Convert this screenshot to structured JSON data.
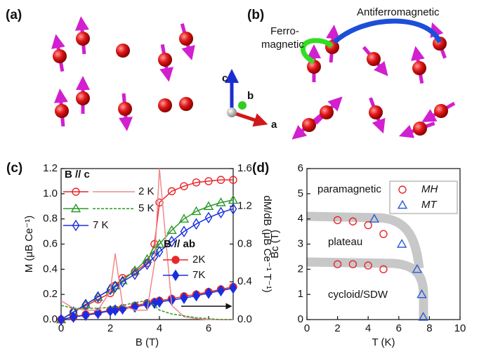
{
  "panel_a": {
    "label": "(a)"
  },
  "panel_b": {
    "label": "(b)",
    "texts": [
      "Ferro-",
      "magnetic",
      "Antiferromagnetic"
    ],
    "axes": [
      "c",
      "b",
      "a"
    ]
  },
  "chart_data": [
    {
      "type": "line",
      "label": "(c)",
      "xlabel": "B (T)",
      "ylabel": "M (μB Ce⁻¹)",
      "y2label": "dM/dB (μB Ce⁻¹ T⁻¹)",
      "legend_titles": [
        "B // c",
        "B // ab"
      ],
      "xlim": [
        0,
        7
      ],
      "xticks": [
        0,
        2,
        4,
        6
      ],
      "ylim": [
        0,
        1.2
      ],
      "yticks": [
        {
          "value": 0,
          "label": "0.0"
        },
        0.2,
        0.4,
        0.6,
        0.8,
        {
          "value": 1,
          "label": "1.0"
        },
        1.2
      ],
      "y2lim": [
        0,
        1.6
      ],
      "y2ticks": [
        {
          "value": 0,
          "label": "0.0"
        },
        0.4,
        0.8,
        1.2,
        1.6
      ],
      "x": [
        0,
        0.5,
        1,
        1.5,
        2,
        2.2,
        2.5,
        3,
        3.5,
        3.8,
        4,
        4.5,
        5,
        5.5,
        6,
        6.5,
        7
      ],
      "series": [
        {
          "name": "2 K",
          "color": "#e8262b",
          "marker": "circle-open",
          "values": [
            0,
            0.06,
            0.11,
            0.16,
            0.21,
            0.27,
            0.33,
            0.38,
            0.45,
            0.6,
            0.93,
            1.02,
            1.06,
            1.09,
            1.1,
            1.11,
            1.11
          ]
        },
        {
          "name": "5 K",
          "color": "#2a9a2a",
          "marker": "triangle-open",
          "values": [
            0,
            0.06,
            0.12,
            0.18,
            0.24,
            0.27,
            0.31,
            0.39,
            0.48,
            0.55,
            0.6,
            0.71,
            0.8,
            0.86,
            0.9,
            0.93,
            0.95
          ]
        },
        {
          "name": "7 K",
          "color": "#1a2ee0",
          "marker": "diamond-open",
          "values": [
            0,
            0.06,
            0.12,
            0.18,
            0.24,
            0.26,
            0.3,
            0.36,
            0.44,
            0.5,
            0.54,
            0.62,
            0.7,
            0.76,
            0.81,
            0.85,
            0.88
          ]
        },
        {
          "name": "2K",
          "color": "#e8262b",
          "marker": "circle-filled",
          "values": [
            0,
            0.02,
            0.04,
            0.055,
            0.075,
            0.08,
            0.09,
            0.11,
            0.13,
            0.14,
            0.15,
            0.165,
            0.185,
            0.2,
            0.22,
            0.24,
            0.26
          ]
        },
        {
          "name": "7K",
          "color": "#1a2ee0",
          "marker": "diamond-filled",
          "values": [
            0,
            0.02,
            0.035,
            0.05,
            0.07,
            0.075,
            0.085,
            0.1,
            0.12,
            0.13,
            0.14,
            0.155,
            0.17,
            0.19,
            0.21,
            0.23,
            0.25
          ]
        },
        {
          "color": "#f08a8a",
          "axis": "y2",
          "values": [
            0.2,
            0.12,
            0.1,
            0.1,
            0.3,
            0.7,
            0.15,
            0.1,
            0.1,
            0.6,
            1.6,
            0.15,
            0.03,
            0.01,
            0,
            0,
            0
          ]
        },
        {
          "color": "#2a9a2a",
          "axis": "y2",
          "dash": true,
          "values": [
            0.15,
            0.12,
            0.12,
            0.12,
            0.13,
            0.13,
            0.15,
            0.18,
            0.2,
            0.15,
            0.1,
            0.06,
            0.04,
            0.02,
            0.01,
            0,
            0
          ]
        }
      ]
    },
    {
      "type": "scatter",
      "label": "(d)",
      "xlabel": "T (K)",
      "ylabel": "Bc (T)",
      "annotations": [
        "paramagnetic",
        "plateau",
        "cycloid/SDW"
      ],
      "xlim": [
        0,
        10
      ],
      "xticks": [
        0,
        2,
        4,
        6,
        8,
        10
      ],
      "ylim": [
        0,
        6
      ],
      "yticks": [
        0,
        1,
        2,
        3,
        4,
        5,
        6
      ],
      "series": [
        {
          "name": "MH",
          "color": "#e8262b",
          "marker": "circle-open",
          "x": [
            2,
            3,
            4,
            5,
            2,
            3,
            4,
            5
          ],
          "values": [
            3.95,
            3.9,
            3.75,
            3.4,
            2.2,
            2.2,
            2.15,
            2.0
          ]
        },
        {
          "name": "MT",
          "color": "#2a5ad8",
          "marker": "triangle-open",
          "x": [
            4.4,
            6.2,
            7.2,
            7.5,
            7.6
          ],
          "values": [
            4.0,
            3.0,
            2.0,
            1.0,
            0.1
          ]
        }
      ]
    }
  ]
}
